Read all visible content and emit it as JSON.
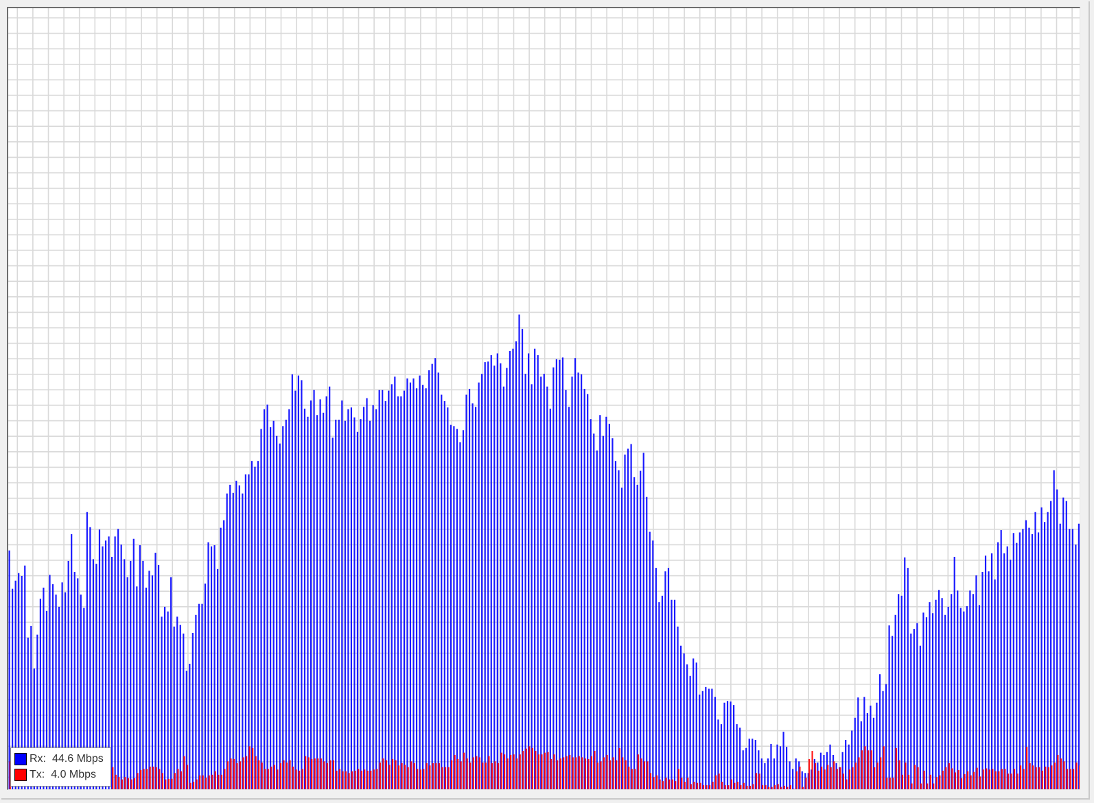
{
  "chart_data": {
    "type": "bar",
    "title": "",
    "xlabel": "",
    "ylabel": "",
    "unit": "Mbps",
    "ylim": [
      0,
      134.4
    ],
    "grid": true,
    "legend_position": "bottom-left",
    "series": [
      {
        "name": "Rx",
        "color": "#0000ff",
        "current_label": "Rx:",
        "current_value": "44.6 Mbps",
        "values": [
          41.1,
          34.5,
          35.9,
          37.2,
          36.7,
          38.5,
          26.1,
          28.1,
          20.8,
          26.6,
          32.8,
          34.7,
          30.7,
          36.9,
          35.3,
          33.5,
          31.4,
          35.6,
          33.9,
          39.3,
          43.9,
          37.4,
          36.3,
          33.5,
          31.2,
          47.7,
          45.1,
          39.6,
          38.8,
          44.7,
          41.8,
          42.8,
          43.5,
          40.0,
          43.5,
          44.8,
          42.1,
          39.6,
          36.5,
          39.3,
          43.1,
          34.9,
          42.0,
          39.3,
          34.7,
          37.6,
          36.8,
          40.7,
          38.6,
          29.7,
          31.4,
          30.6,
          36.5,
          28.0,
          29.7,
          28.3,
          26.8,
          20.4,
          21.6,
          26.9,
          30.0,
          31.9,
          31.9,
          35.4,
          42.5,
          41.8,
          42.0,
          37.9,
          45.0,
          46.3,
          50.9,
          52.4,
          51.0,
          53.1,
          52.3,
          50.9,
          54.2,
          54.2,
          56.5,
          55.5,
          56.5,
          62.0,
          65.4,
          66.2,
          62.3,
          63.4,
          60.8,
          59.5,
          62.5,
          63.6,
          65.4,
          71.4,
          68.6,
          71.2,
          70.4,
          65.5,
          64.1,
          66.9,
          68.7,
          64.4,
          67.1,
          64.8,
          67.6,
          69.3,
          60.5,
          63.6,
          63.6,
          66.9,
          63.4,
          65.4,
          65.7,
          64.0,
          61.5,
          63.7,
          65.8,
          67.3,
          63.4,
          66.1,
          65.4,
          68.7,
          68.7,
          66.8,
          68.6,
          69.7,
          71.0,
          67.6,
          67.6,
          68.6,
          70.7,
          70.0,
          70.7,
          69.0,
          71.2,
          69.6,
          69.0,
          72.1,
          73.2,
          74.2,
          71.7,
          67.9,
          66.8,
          65.7,
          62.7,
          62.5,
          62.0,
          59.7,
          61.8,
          67.9,
          68.9,
          66.4,
          65.8,
          70.0,
          71.5,
          73.5,
          73.6,
          74.7,
          72.9,
          75.0,
          73.3,
          69.3,
          72.5,
          75.4,
          75.8,
          77.1,
          81.7,
          79.2,
          71.5,
          75.0,
          69.7,
          75.8,
          74.7,
          71.0,
          71.5,
          69.3,
          65.5,
          72.6,
          74.0,
          73.9,
          74.3,
          68.7,
          65.8,
          71.0,
          74.2,
          71.7,
          71.4,
          68.9,
          68.0,
          63.7,
          61.2,
          58.3,
          64.4,
          60.8,
          64.1,
          62.9,
          60.4,
          56.5,
          54.9,
          51.9,
          57.6,
          58.6,
          59.4,
          53.7,
          52.4,
          54.8,
          57.9,
          50.3,
          44.3,
          42.8,
          38.1,
          32.2,
          33.3,
          37.5,
          38.1,
          32.6,
          32.6,
          28.0,
          24.7,
          23.4,
          21.5,
          19.5,
          22.5,
          21.8,
          16.3,
          16.9,
          17.6,
          17.3,
          17.3,
          15.9,
          12.0,
          11.2,
          14.9,
          15.2,
          15.1,
          14.5,
          11.2,
          10.6,
          6.7,
          7.1,
          8.7,
          8.7,
          8.5,
          6.7,
          5.3,
          4.5,
          5.3,
          7.8,
          5.3,
          7.7,
          7.4,
          9.9,
          7.3,
          4.8,
          3.5,
          5.3,
          4.8,
          3.1,
          2.8,
          2.8,
          3.4,
          5.2,
          4.6,
          6.3,
          5.9,
          6.4,
          7.7,
          5.9,
          4.5,
          3.8,
          6.4,
          8.5,
          7.7,
          10.1,
          12.3,
          15.8,
          11.7,
          15.9,
          13.1,
          14.4,
          12.3,
          14.9,
          19.8,
          16.9,
          18.1,
          28.2,
          26.4,
          30.0,
          33.6,
          33.3,
          39.9,
          38.1,
          26.8,
          27.6,
          28.6,
          24.7,
          30.4,
          29.6,
          32.2,
          30.3,
          32.6,
          34.3,
          32.9,
          30.0,
          31.4,
          33.6,
          40.0,
          34.2,
          31.2,
          30.6,
          31.5,
          34.2,
          33.6,
          36.8,
          31.7,
          37.4,
          40.2,
          37.5,
          40.6,
          36.1,
          42.5,
          44.6,
          40.6,
          41.8,
          39.5,
          44.1,
          42.4,
          44.2,
          44.8,
          46.3,
          45.0,
          43.9,
          47.7,
          44.2,
          48.5,
          46.0,
          47.7,
          49.6,
          54.9,
          51.6,
          45.7,
          50.2,
          49.6,
          44.8,
          44.8,
          42.1,
          45.7,
          44.6
        ]
      },
      {
        "name": "Tx",
        "color": "#ff0000",
        "current_label": "Tx:",
        "current_value": "4.0 Mbps",
        "values": [
          4.8,
          null,
          null,
          null,
          null,
          null,
          null,
          null,
          null,
          null,
          null,
          null,
          null,
          null,
          null,
          null,
          null,
          null,
          null,
          null,
          null,
          null,
          null,
          null,
          null,
          null,
          null,
          null,
          null,
          null,
          null,
          null,
          null,
          3.8,
          2.5,
          2.1,
          1.7,
          2.1,
          1.9,
          1.7,
          1.9,
          2.8,
          3.3,
          3.5,
          3.5,
          3.9,
          3.9,
          3.8,
          3.5,
          2.8,
          1.7,
          1.8,
          1.8,
          2.8,
          3.5,
          3.1,
          5.7,
          4.2,
          1.1,
          1.3,
          1.7,
          2.4,
          2.4,
          2.0,
          2.4,
          2.5,
          3.1,
          2.5,
          2.5,
          3.5,
          4.8,
          5.3,
          5.2,
          4.5,
          4.8,
          5.5,
          5.7,
          7.4,
          7.1,
          5.7,
          5.0,
          4.6,
          3.5,
          3.5,
          3.9,
          4.2,
          3.4,
          4.5,
          5.0,
          4.6,
          5.0,
          3.9,
          3.4,
          3.2,
          3.5,
          5.7,
          5.5,
          5.2,
          5.3,
          5.3,
          5.3,
          4.8,
          4.5,
          5.0,
          5.0,
          3.2,
          3.5,
          3.1,
          3.1,
          2.8,
          3.1,
          3.2,
          3.5,
          3.2,
          3.4,
          3.2,
          3.2,
          3.4,
          3.5,
          4.6,
          5.3,
          5.0,
          4.2,
          5.2,
          5.0,
          4.1,
          4.5,
          4.2,
          3.8,
          4.8,
          4.5,
          3.5,
          3.4,
          3.5,
          4.5,
          4.1,
          4.5,
          4.5,
          4.5,
          3.8,
          3.8,
          3.8,
          5.0,
          5.9,
          5.2,
          4.8,
          6.3,
          5.3,
          4.6,
          5.5,
          5.7,
          5.5,
          4.6,
          4.6,
          5.7,
          4.5,
          4.8,
          4.5,
          6.3,
          6.0,
          5.3,
          5.9,
          6.0,
          5.3,
          6.0,
          6.6,
          7.0,
          7.4,
          7.1,
          6.6,
          6.0,
          6.0,
          6.3,
          6.4,
          5.2,
          6.0,
          5.0,
          5.3,
          5.5,
          5.7,
          5.9,
          5.5,
          5.5,
          5.7,
          5.5,
          5.3,
          5.2,
          5.7,
          6.6,
          4.6,
          4.8,
          5.5,
          5.9,
          5.0,
          5.5,
          5.0,
          7.1,
          5.5,
          5.0,
          3.9,
          3.5,
          3.5,
          6.0,
          5.3,
          4.8,
          4.8,
          2.8,
          2.1,
          2.4,
          1.7,
          1.4,
          2.0,
          1.7,
          1.7,
          1.4,
          3.5,
          2.0,
          1.3,
          2.0,
          0.9,
          1.3,
          1.1,
          1.1,
          0.7,
          0.7,
          0.7,
          1.3,
          2.4,
          2.7,
          1.3,
          0.7,
          0.7,
          1.7,
          1.1,
          1.3,
          0.7,
          1.1,
          0.6,
          0.6,
          0.9,
          2.8,
          2.7,
          0.7,
          0.7,
          0.4,
          0.4,
          0.7,
          0.9,
          0.4,
          0.6,
          0.4,
          0.7,
          0.1,
          3.1,
          3.9,
          0.4,
          2.0,
          5.2,
          6.6,
          4.5,
          3.2,
          3.9,
          3.4,
          4.2,
          3.8,
          4.8,
          3.5,
          3.8,
          2.7,
          1.7,
          3.4,
          3.8,
          4.6,
          5.5,
          6.7,
          7.4,
          6.7,
          6.7,
          3.8,
          4.6,
          5.5,
          7.4,
          2.0,
          2.0,
          2.0,
          7.1,
          5.0,
          2.5,
          4.6,
          2.5,
          1.0,
          4.2,
          3.8,
          1.0,
          3.2,
          1.0,
          2.5,
          1.0,
          2.1,
          2.4,
          3.2,
          3.8,
          4.5,
          3.6,
          2.9,
          3.3,
          1.9,
          2.6,
          3.1,
          2.4,
          3.0,
          3.7,
          2.2,
          3.4,
          3.6,
          3.4,
          3.5,
          3.1,
          3.1,
          3.5,
          3.5,
          2.7,
          2.7,
          3.5,
          2.7,
          4.1,
          3.5,
          7.3,
          4.5,
          4.1,
          3.8,
          3.8,
          3.2,
          3.9,
          3.8,
          4.1,
          4.6,
          5.9,
          5.3,
          4.8,
          3.5,
          3.5,
          3.5,
          4.6,
          4.1,
          4.0
        ]
      }
    ]
  }
}
